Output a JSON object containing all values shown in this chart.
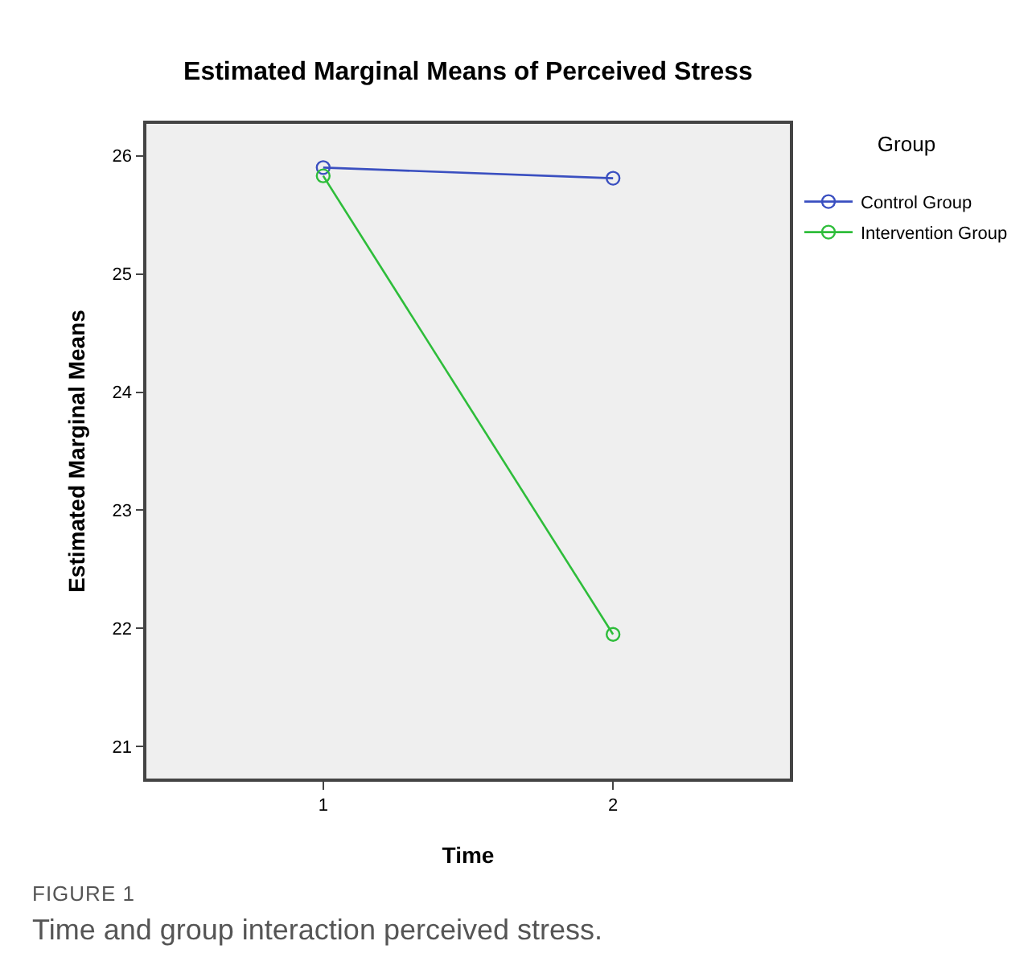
{
  "chart_data": {
    "type": "line",
    "title": "Estimated Marginal Means of Perceived Stress",
    "xlabel": "Time",
    "ylabel": "Estimated Marginal Means",
    "legend_title": "Group",
    "categories": [
      "1",
      "2"
    ],
    "series": [
      {
        "name": "Control Group",
        "color": "#3a4fc0",
        "values": [
          25.9,
          25.81
        ]
      },
      {
        "name": "Intervention Group",
        "color": "#2ebd3a",
        "values": [
          25.83,
          21.95
        ]
      }
    ],
    "ylim": [
      20.73,
      26.27
    ],
    "yticks": [
      21,
      22,
      23,
      24,
      25,
      26
    ],
    "grid": false,
    "legend": "top right",
    "marker": "circle",
    "line_style": "solid",
    "annotations": [
      "FIGURE 1",
      "Time and group interaction perceived stress."
    ]
  }
}
